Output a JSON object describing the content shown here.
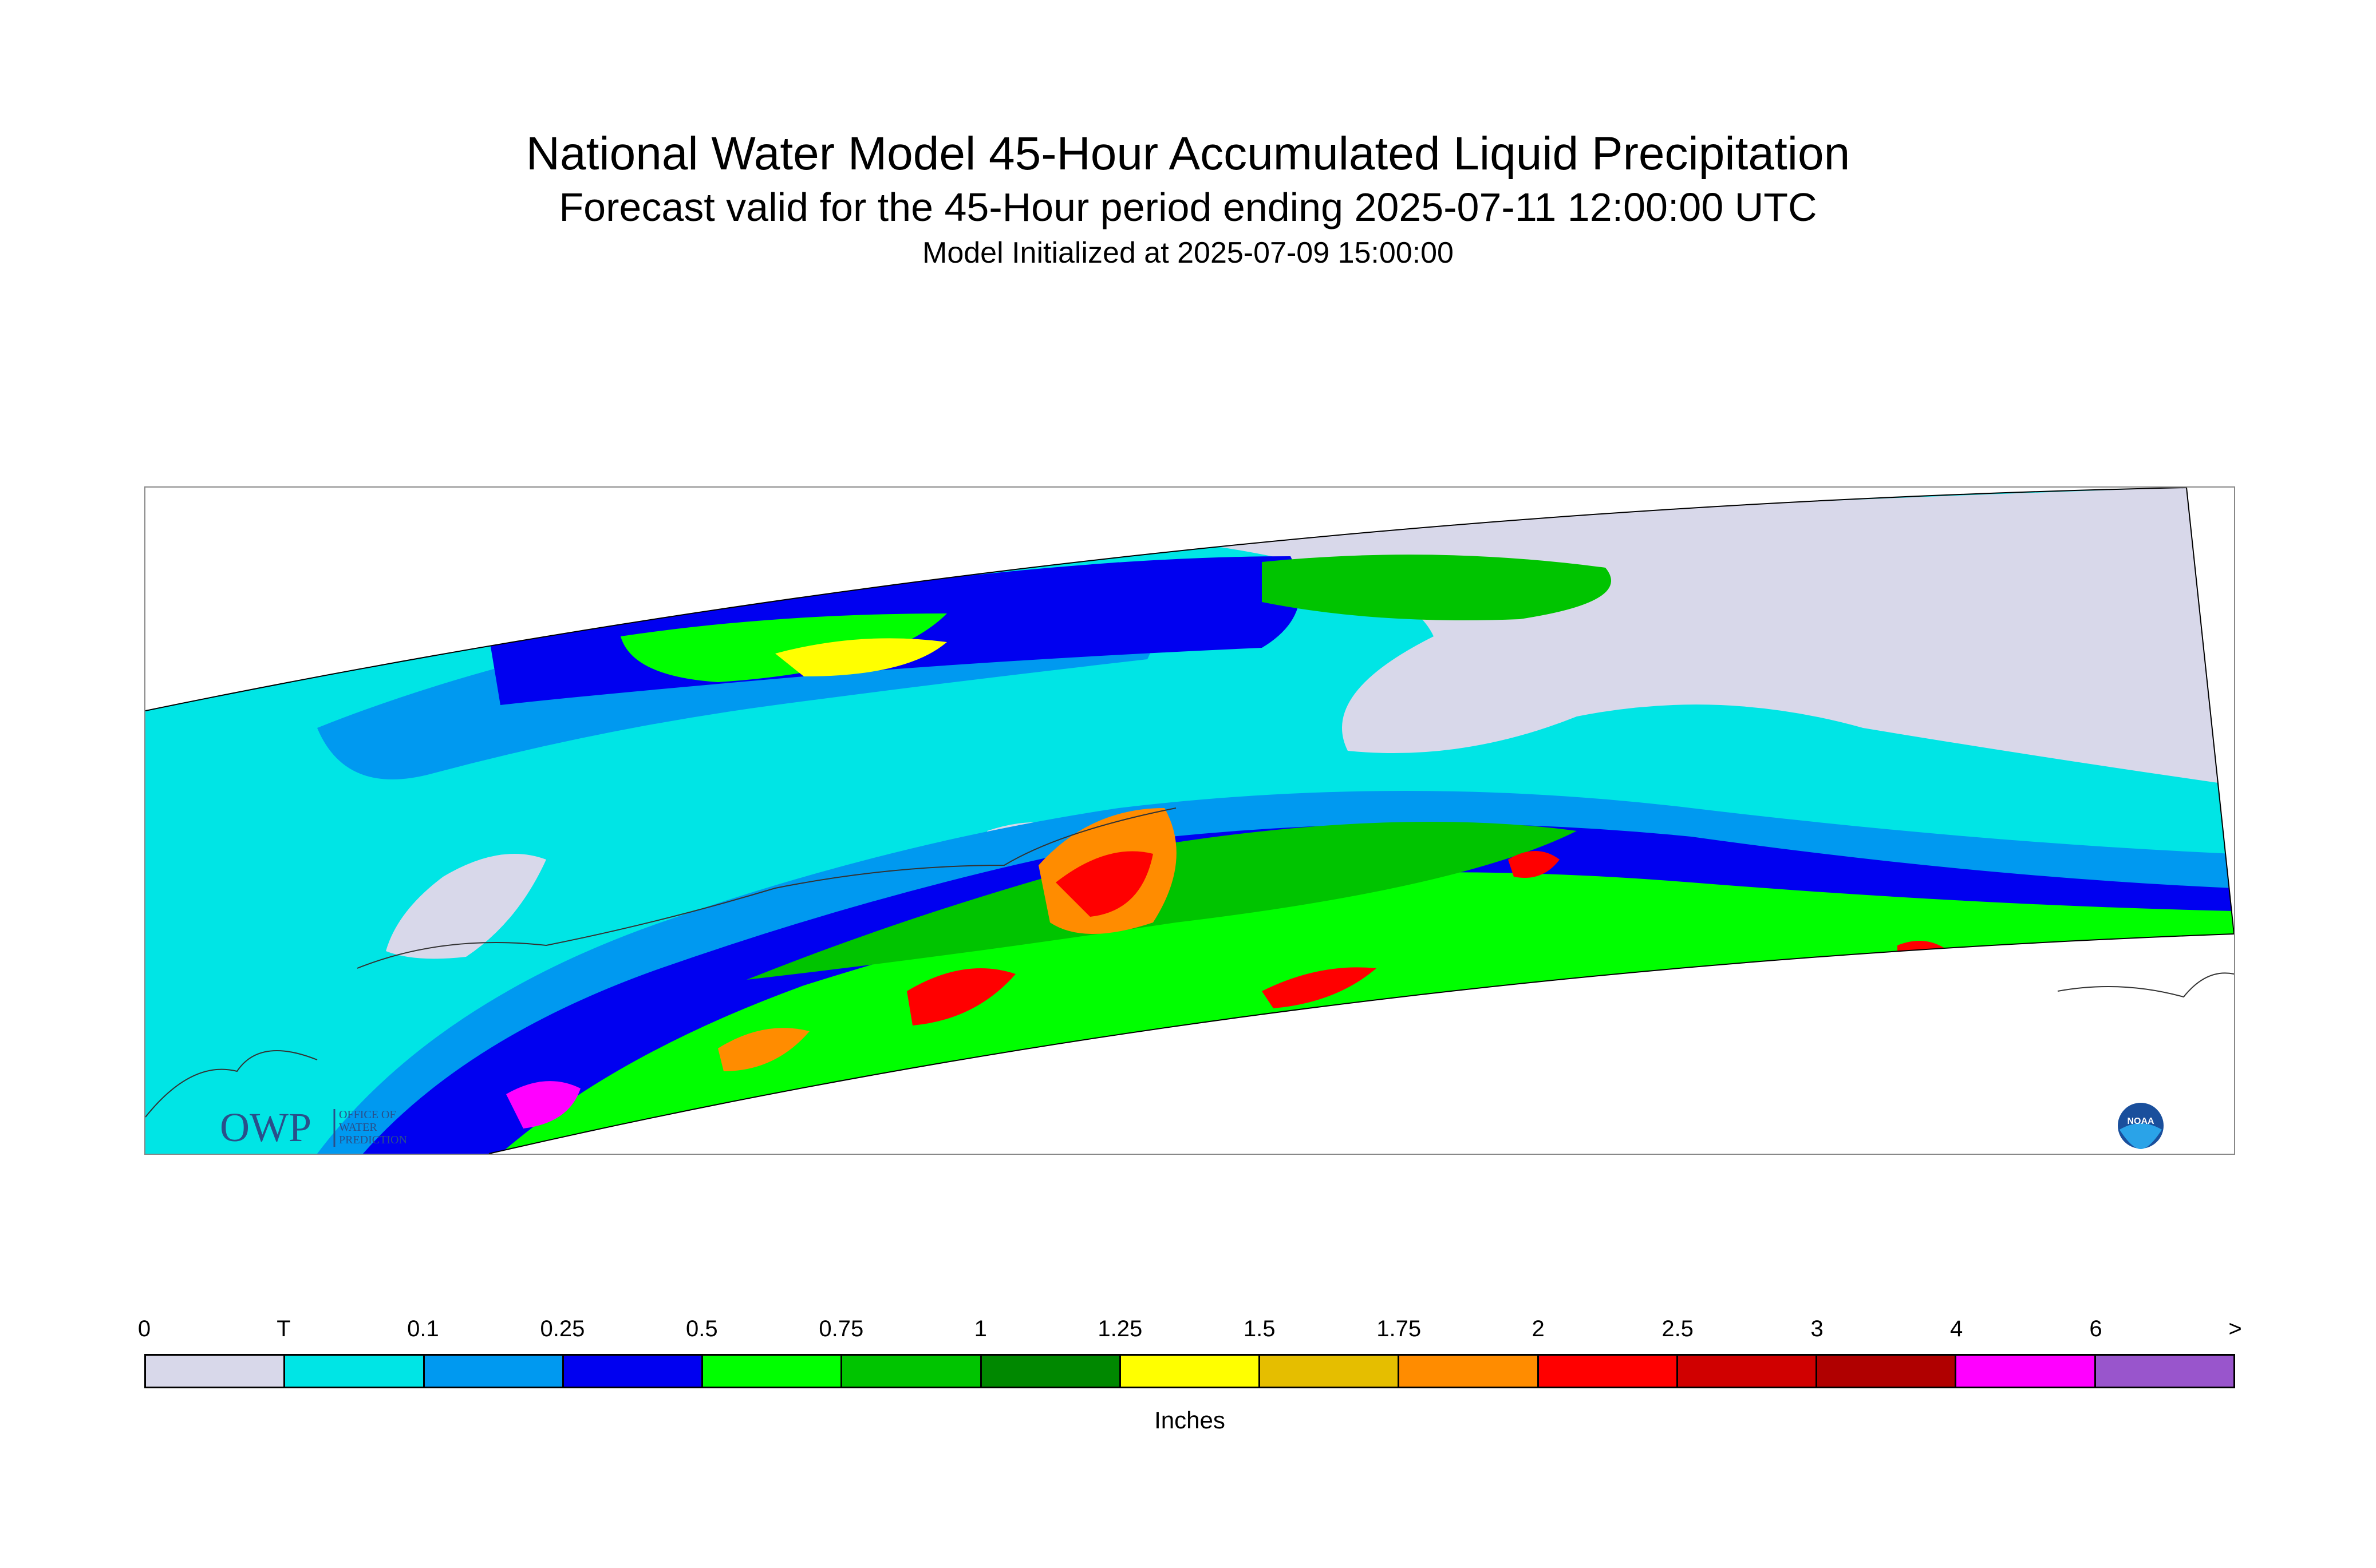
{
  "title": "National Water Model 45-Hour Accumulated Liquid Precipitation",
  "subtitle": "Forecast valid for the 45-Hour period ending 2025-07-11 12:00:00 UTC",
  "initialized": "Model Initialized at 2025-07-09 15:00:00",
  "map": {
    "owp_logo": {
      "acronym": "OWP",
      "name_lines": [
        "OFFICE OF",
        "WATER",
        "PREDICTION"
      ]
    },
    "noaa_logo": {
      "text": "NOAA"
    }
  },
  "legend": {
    "units_label": "Inches",
    "tick_labels": [
      "0",
      "T",
      "0.1",
      "0.25",
      "0.5",
      "0.75",
      "1",
      "1.25",
      "1.5",
      "1.75",
      "2",
      "2.5",
      "3",
      "4",
      "6",
      ">"
    ],
    "colors": [
      "#d8d8ea",
      "#00e5e5",
      "#0099f0",
      "#0000f0",
      "#00ff00",
      "#00c400",
      "#008800",
      "#ffff00",
      "#e5be00",
      "#ff8c00",
      "#ff0000",
      "#d00000",
      "#b00000",
      "#ff00ff",
      "#9955cc"
    ]
  }
}
